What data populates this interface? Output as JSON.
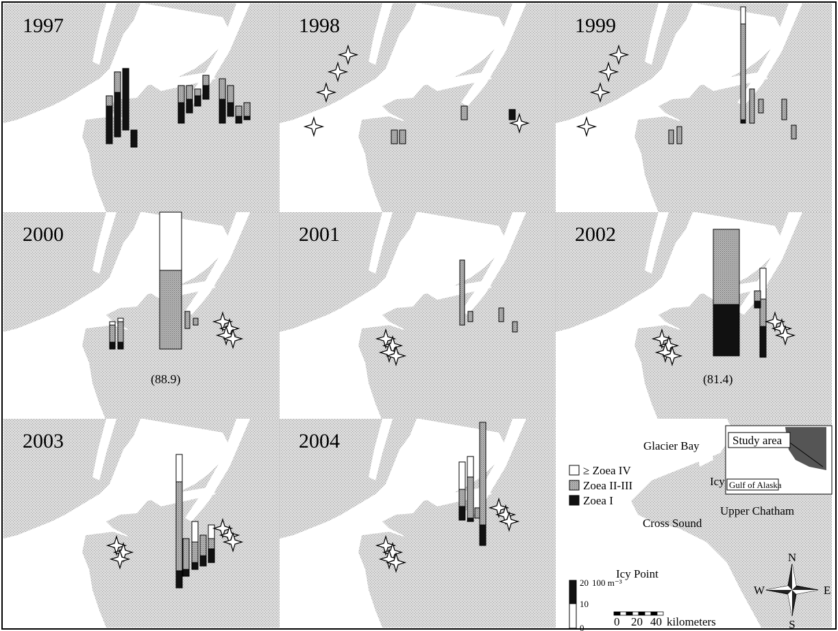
{
  "colors": {
    "land": "#d3d3d3",
    "water": "#ffffff",
    "zoea_I": "#111111",
    "zoea_II_III": "#a3a3a3",
    "zoea_IV_plus": "#ffffff",
    "outline": "#000000"
  },
  "panels": [
    {
      "year": "1997",
      "note": ""
    },
    {
      "year": "1998",
      "note": ""
    },
    {
      "year": "1999",
      "note": ""
    },
    {
      "year": "2000",
      "note": "(88.9)"
    },
    {
      "year": "2001",
      "note": ""
    },
    {
      "year": "2002",
      "note": "(81.4)"
    },
    {
      "year": "2003",
      "note": ""
    },
    {
      "year": "2004",
      "note": ""
    }
  ],
  "legend": {
    "zoea_iv": "≥ Zoea IV",
    "zoea_ii_iii": "Zoea II-III",
    "zoea_i": "Zoea I"
  },
  "scale_bar": {
    "ticks": [
      "0",
      "10",
      "20"
    ],
    "unit": "100 m⁻³"
  },
  "distance_scale": {
    "ticks": [
      "0",
      "20",
      "40"
    ],
    "unit": "kilometers"
  },
  "place_names": {
    "glacier_bay": "Glacier Bay",
    "icy_strait": "Icy Strait",
    "upper_chatham": "Upper Chatham",
    "cross_sound": "Cross Sound",
    "icy_point": "Icy Point",
    "study_area": "Study area",
    "gulf_of_alaska": "Gulf of Alaska"
  },
  "compass": {
    "n": "N",
    "s": "S",
    "e": "E",
    "w": "W"
  }
}
